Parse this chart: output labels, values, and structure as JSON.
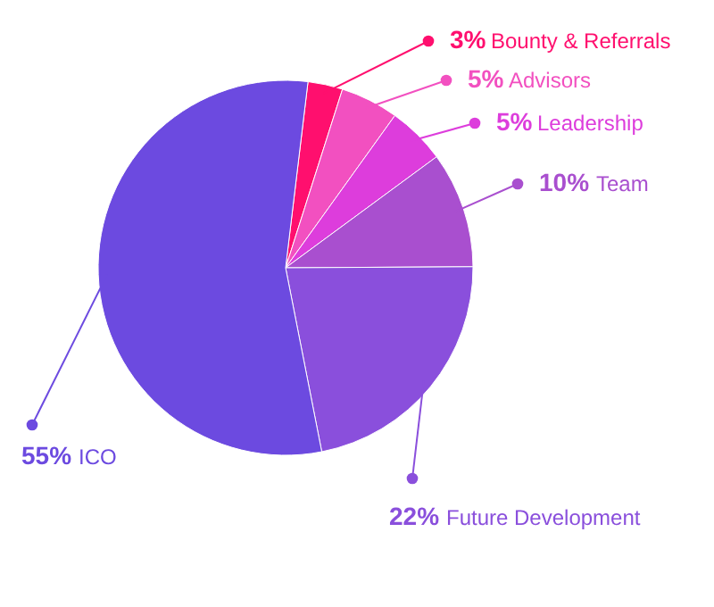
{
  "chart_data": {
    "type": "pie",
    "categories": [
      "Bounty & Referrals",
      "Advisors",
      "Leadership",
      "Team",
      "Future Development",
      "ICO"
    ],
    "values": [
      3,
      5,
      5,
      10,
      22,
      55
    ],
    "value_labels": [
      "3%",
      "5%",
      "5%",
      "10%",
      "22%",
      "55%"
    ],
    "colors": [
      "#ff0f6e",
      "#f250c0",
      "#dd3ddc",
      "#a94fcf",
      "#8a4fdc",
      "#6c4ae0"
    ]
  }
}
